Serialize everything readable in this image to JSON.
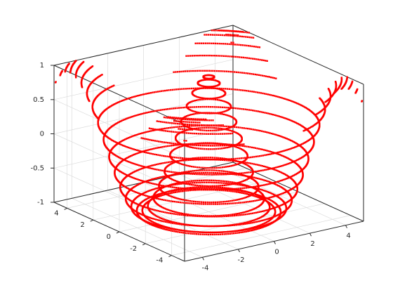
{
  "chart_data": {
    "type": "scatter",
    "plot_kind": "3d-contour-rings",
    "title": "",
    "xlabel": "",
    "ylabel": "",
    "zlabel": "",
    "xlim": [
      -5,
      5
    ],
    "ylim": [
      -5,
      5
    ],
    "zlim": [
      -1,
      1
    ],
    "x_ticks": [
      -4,
      -2,
      0,
      2,
      4
    ],
    "y_ticks": [
      -4,
      -2,
      0,
      2,
      4
    ],
    "z_ticks": [
      -1,
      -0.5,
      0,
      0.5,
      1
    ],
    "x_tick_labels": [
      "-4",
      "-2",
      "0",
      "2",
      "4"
    ],
    "y_tick_labels": [
      "-4",
      "-2",
      "0",
      "2",
      "4"
    ],
    "z_tick_labels": [
      "-1",
      "-0.5",
      "0",
      "0.5",
      "1"
    ],
    "grid": true,
    "marker_color": "#ff0000",
    "surface": "z = cos(sqrt(x^2 + y^2)) sampled on rings",
    "series": [
      {
        "marker": "point",
        "color": "#ff0000",
        "ring_radii": [
          0.25,
          0.5,
          0.75,
          1.0,
          1.25,
          1.5,
          1.75,
          2.0,
          2.25,
          2.5,
          2.75,
          3.0,
          3.25,
          3.5,
          3.75,
          4.0,
          4.25,
          4.5,
          4.75,
          5.0,
          5.25,
          5.5,
          5.75,
          6.0,
          6.25,
          6.5,
          6.75,
          7.0
        ]
      }
    ]
  }
}
